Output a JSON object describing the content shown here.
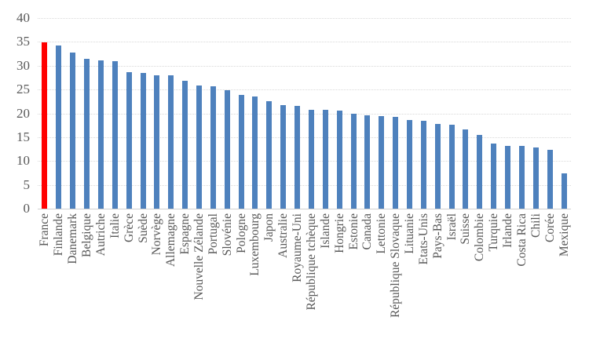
{
  "chart_data": {
    "type": "bar",
    "title": "",
    "xlabel": "",
    "ylabel": "",
    "legend": "none",
    "grid": true,
    "ylim": [
      0,
      40
    ],
    "yticks": [
      0,
      5,
      10,
      15,
      20,
      25,
      30,
      35,
      40
    ],
    "bar_color": "#4e81bd",
    "highlight_color": "#ff0000",
    "highlight_category": "France",
    "gridline_color": "#d9d9d9",
    "axis_text_color": "#595959",
    "categories": [
      "France",
      "Finlande",
      "Danemark",
      "Belgique",
      "Autriche",
      "Italie",
      "Grèce",
      "Suède",
      "Norvège",
      "Allemagne",
      "Espagne",
      "Nouvelle Zélande",
      "Portugal",
      "Slovénie",
      "Pologne",
      "Luxembourg",
      "Japon",
      "Australie",
      "Royaume-Uni",
      "République tchèque",
      "Islande",
      "Hongrie",
      "Estonie",
      "Canada",
      "Lettonie",
      "République Slovaque",
      "Lituanie",
      "Etats-Unis",
      "Pays-Bas",
      "Israël",
      "Suisse",
      "Colombie",
      "Turquie",
      "Irlande",
      "Costa Rica",
      "Chili",
      "Corée",
      "Mexique"
    ],
    "values": [
      34.9,
      34.3,
      32.8,
      31.5,
      31.1,
      30.9,
      28.6,
      28.4,
      28.0,
      28.0,
      26.9,
      25.8,
      25.7,
      24.9,
      23.8,
      23.6,
      22.5,
      21.8,
      21.6,
      20.8,
      20.7,
      20.5,
      19.9,
      19.6,
      19.5,
      19.2,
      18.6,
      18.5,
      17.8,
      17.6,
      16.6,
      15.4,
      13.6,
      13.2,
      13.1,
      12.9,
      12.4,
      7.4
    ]
  }
}
